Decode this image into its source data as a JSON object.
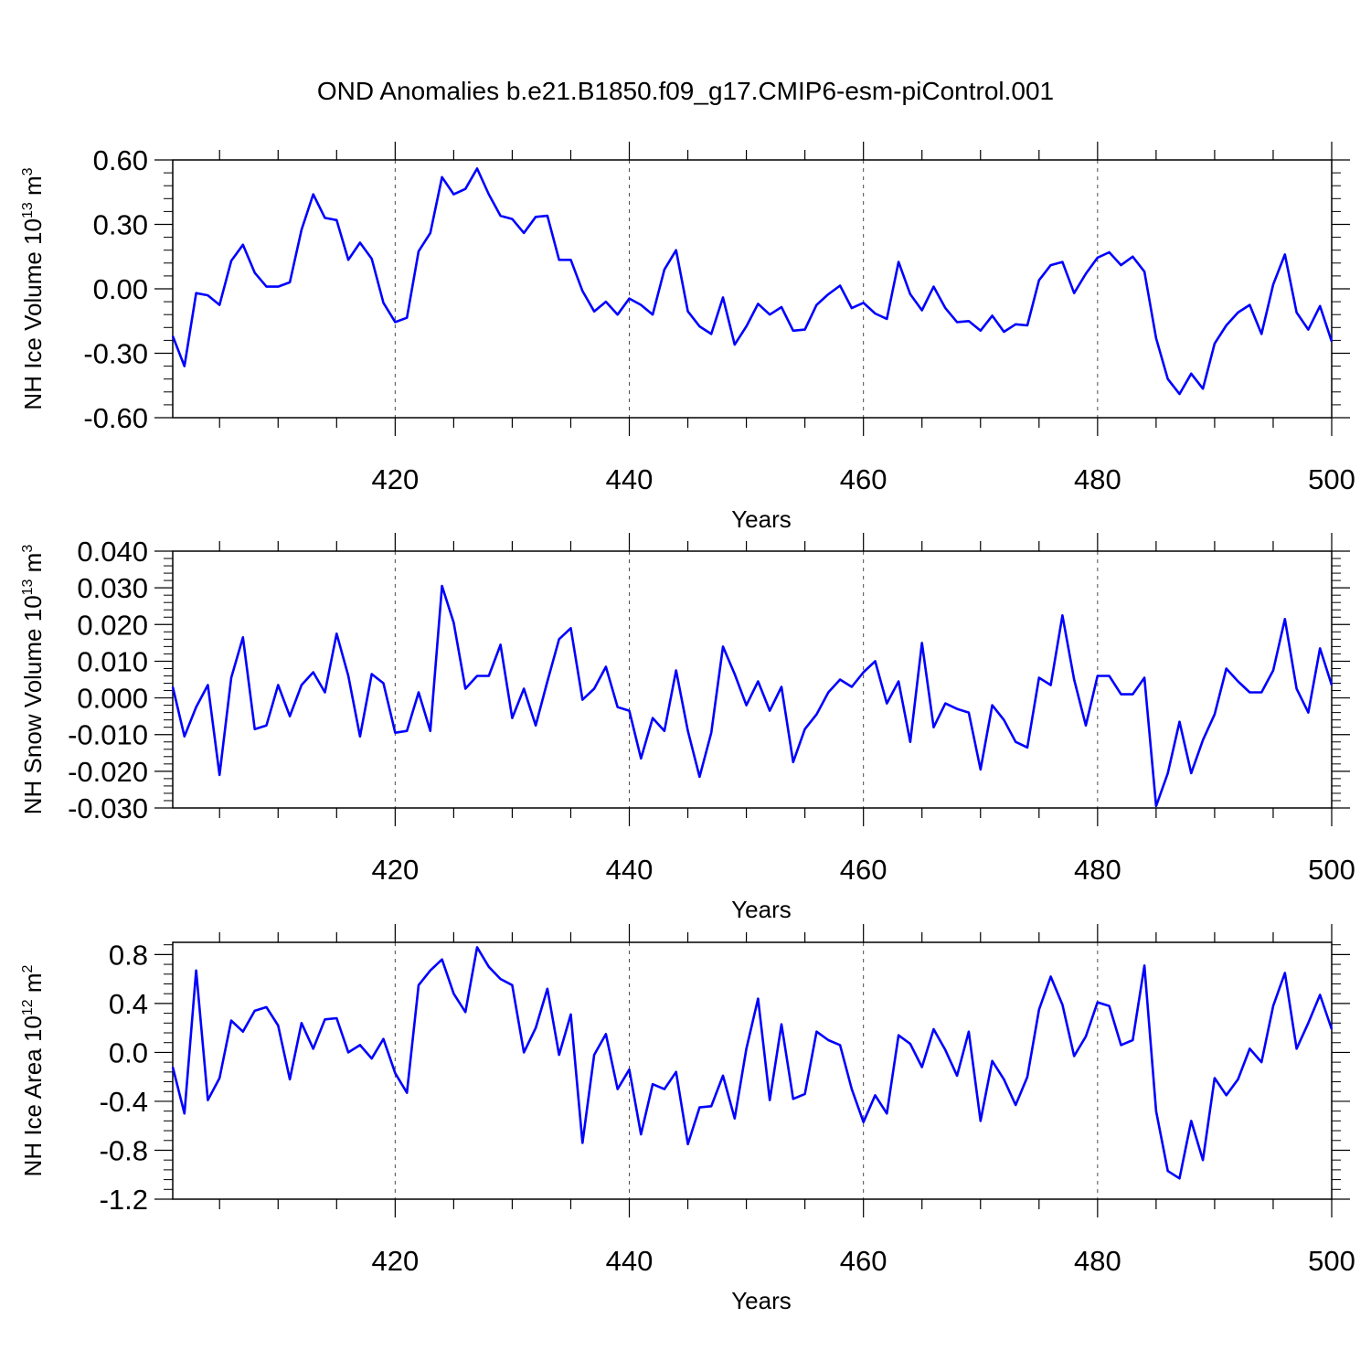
{
  "title": "OND Anomalies b.e21.B1850.f09_g17.CMIP6-esm-piControl.001",
  "colors": {
    "series": "#0000ff",
    "axis": "#000000",
    "grid": "#000000"
  },
  "chart_data": [
    {
      "type": "line",
      "xlabel": "Years",
      "ylabel": "NH Ice Volume 10",
      "ylabel_exp": "13",
      "ylabel_unit": " m",
      "ylabel_unit_exp": "3",
      "xlim": [
        401,
        500
      ],
      "ylim": [
        -0.6,
        0.6
      ],
      "yticks": [
        -0.6,
        -0.3,
        0.0,
        0.3,
        0.6
      ],
      "ytick_labels": [
        "-0.60",
        "-0.30",
        "0.00",
        "0.30",
        "0.60"
      ],
      "xticks": [
        420,
        440,
        460,
        480,
        500
      ],
      "xtick_labels": [
        "420",
        "440",
        "460",
        "480",
        "500"
      ],
      "grid": "vertical dashed at major x ticks",
      "x_start": 401,
      "values": [
        -0.22,
        -0.36,
        -0.02,
        -0.03,
        -0.075,
        0.13,
        0.205,
        0.075,
        0.01,
        0.01,
        0.03,
        0.275,
        0.44,
        0.33,
        0.32,
        0.135,
        0.215,
        0.14,
        -0.065,
        -0.155,
        -0.135,
        0.175,
        0.26,
        0.52,
        0.44,
        0.465,
        0.56,
        0.44,
        0.34,
        0.325,
        0.26,
        0.335,
        0.34,
        0.135,
        0.135,
        -0.01,
        -0.105,
        -0.06,
        -0.12,
        -0.045,
        -0.075,
        -0.12,
        0.09,
        0.18,
        -0.105,
        -0.175,
        -0.21,
        -0.04,
        -0.26,
        -0.175,
        -0.07,
        -0.12,
        -0.085,
        -0.195,
        -0.19,
        -0.075,
        -0.025,
        0.015,
        -0.09,
        -0.065,
        -0.115,
        -0.14,
        0.125,
        -0.025,
        -0.1,
        0.01,
        -0.09,
        -0.155,
        -0.15,
        -0.195,
        -0.125,
        -0.2,
        -0.165,
        -0.17,
        0.04,
        0.11,
        0.125,
        -0.02,
        0.07,
        0.145,
        0.17,
        0.11,
        0.15,
        0.08,
        -0.23,
        -0.42,
        -0.49,
        -0.395,
        -0.465,
        -0.255,
        -0.17,
        -0.11,
        -0.075,
        -0.21,
        0.02,
        0.16,
        -0.11,
        -0.19,
        -0.08,
        -0.245
      ]
    },
    {
      "type": "line",
      "xlabel": "Years",
      "ylabel": "NH Snow Volume 10",
      "ylabel_exp": "13",
      "ylabel_unit": " m",
      "ylabel_unit_exp": "3",
      "xlim": [
        401,
        500
      ],
      "ylim": [
        -0.03,
        0.04
      ],
      "yticks": [
        -0.03,
        -0.02,
        -0.01,
        0.0,
        0.01,
        0.02,
        0.03,
        0.04
      ],
      "ytick_labels": [
        "-0.030",
        "-0.020",
        "-0.010",
        "0.000",
        "0.010",
        "0.020",
        "0.030",
        "0.040"
      ],
      "xticks": [
        420,
        440,
        460,
        480,
        500
      ],
      "xtick_labels": [
        "420",
        "440",
        "460",
        "480",
        "500"
      ],
      "grid": "vertical dashed at major x ticks",
      "x_start": 401,
      "values": [
        0.003,
        -0.0105,
        -0.0025,
        0.0035,
        -0.021,
        0.0055,
        0.0165,
        -0.0085,
        -0.0075,
        0.0035,
        -0.005,
        0.0035,
        0.007,
        0.0015,
        0.0175,
        0.006,
        -0.0105,
        0.0065,
        0.004,
        -0.0095,
        -0.009,
        0.0015,
        -0.009,
        0.0305,
        0.0205,
        0.0025,
        0.006,
        0.006,
        0.0145,
        -0.0055,
        0.0025,
        -0.0075,
        0.0045,
        0.016,
        0.019,
        -0.0005,
        0.0025,
        0.0085,
        -0.0025,
        -0.0035,
        -0.0165,
        -0.0055,
        -0.009,
        0.0075,
        -0.009,
        -0.0215,
        -0.0095,
        0.014,
        0.0065,
        -0.002,
        0.0045,
        -0.0035,
        0.003,
        -0.0175,
        -0.0085,
        -0.0045,
        0.0015,
        0.005,
        0.003,
        0.007,
        0.01,
        -0.0015,
        0.0045,
        -0.012,
        0.015,
        -0.008,
        -0.0015,
        -0.003,
        -0.004,
        -0.0195,
        -0.002,
        -0.006,
        -0.012,
        -0.0135,
        0.0055,
        0.0035,
        0.0225,
        0.005,
        -0.0075,
        0.006,
        0.006,
        0.001,
        0.001,
        0.0055,
        -0.0295,
        -0.0205,
        -0.0065,
        -0.0205,
        -0.0115,
        -0.0045,
        0.008,
        0.0045,
        0.0015,
        0.0015,
        0.0075,
        0.0215,
        0.0025,
        -0.004,
        0.0135,
        0.0035
      ]
    },
    {
      "type": "line",
      "xlabel": "Years",
      "ylabel": "NH Ice Area 10",
      "ylabel_exp": "12",
      "ylabel_unit": " m",
      "ylabel_unit_exp": "2",
      "xlim": [
        401,
        500
      ],
      "ylim": [
        -1.2,
        0.9
      ],
      "yticks": [
        -1.2,
        -0.8,
        -0.4,
        0.0,
        0.4,
        0.8
      ],
      "ytick_labels": [
        "-1.2",
        "-0.8",
        "-0.4",
        "0.0",
        "0.4",
        "0.8"
      ],
      "xticks": [
        420,
        440,
        460,
        480,
        500
      ],
      "xtick_labels": [
        "420",
        "440",
        "460",
        "480",
        "500"
      ],
      "grid": "vertical dashed at major x ticks",
      "x_start": 401,
      "values": [
        -0.12,
        -0.5,
        0.67,
        -0.39,
        -0.21,
        0.26,
        0.17,
        0.34,
        0.37,
        0.22,
        -0.22,
        0.24,
        0.03,
        0.27,
        0.28,
        0.0,
        0.06,
        -0.05,
        0.11,
        -0.17,
        -0.33,
        0.55,
        0.67,
        0.76,
        0.48,
        0.33,
        0.86,
        0.7,
        0.6,
        0.55,
        0.0,
        0.2,
        0.52,
        -0.02,
        0.31,
        -0.74,
        -0.02,
        0.15,
        -0.3,
        -0.14,
        -0.67,
        -0.26,
        -0.3,
        -0.16,
        -0.75,
        -0.45,
        -0.44,
        -0.19,
        -0.54,
        0.03,
        0.44,
        -0.39,
        0.23,
        -0.38,
        -0.34,
        0.17,
        0.1,
        0.06,
        -0.3,
        -0.57,
        -0.35,
        -0.5,
        0.14,
        0.07,
        -0.12,
        0.19,
        0.02,
        -0.19,
        0.17,
        -0.56,
        -0.07,
        -0.22,
        -0.43,
        -0.2,
        0.35,
        0.62,
        0.39,
        -0.03,
        0.13,
        0.41,
        0.38,
        0.06,
        0.1,
        0.71,
        -0.48,
        -0.97,
        -1.03,
        -0.56,
        -0.88,
        -0.21,
        -0.35,
        -0.22,
        0.03,
        -0.08,
        0.38,
        0.65,
        0.03,
        0.24,
        0.47,
        0.19
      ]
    }
  ]
}
